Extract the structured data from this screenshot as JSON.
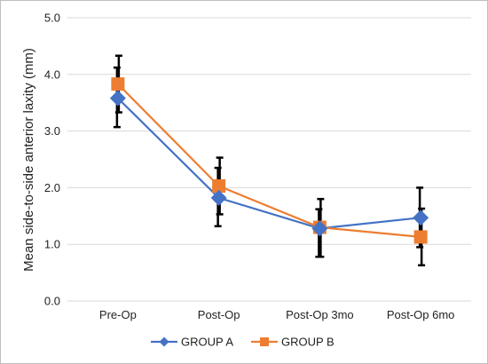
{
  "chart_data": {
    "type": "line",
    "title": "",
    "xlabel": "",
    "ylabel": "Mean side-to-side anterior laxity (mm)",
    "categories": [
      "Pre-Op",
      "Post-Op",
      "Post-Op 3mo",
      "Post-Op 6mo"
    ],
    "ylim": [
      0,
      5
    ],
    "yticks": [
      "0.0",
      "1.0",
      "2.0",
      "3.0",
      "4.0",
      "5.0"
    ],
    "grid": true,
    "legend_position": "bottom",
    "series": [
      {
        "name": "GROUP A",
        "color": "#4472C4",
        "marker": "diamond",
        "values": [
          3.58,
          1.82,
          1.28,
          1.47
        ],
        "error_low": [
          3.07,
          1.32,
          0.78,
          0.95
        ],
        "error_high": [
          4.12,
          2.35,
          1.62,
          2.0
        ]
      },
      {
        "name": "GROUP B",
        "color": "#ED7D31",
        "marker": "square",
        "values": [
          3.83,
          2.03,
          1.3,
          1.13
        ],
        "error_low": [
          3.33,
          1.53,
          0.78,
          0.63
        ],
        "error_high": [
          4.33,
          2.53,
          1.8,
          1.63
        ]
      }
    ]
  }
}
